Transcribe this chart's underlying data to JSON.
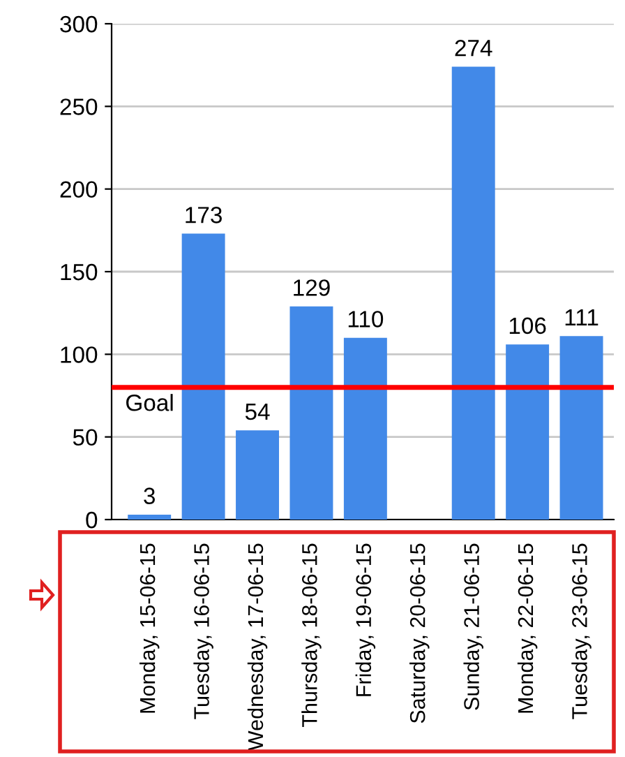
{
  "chart_data": {
    "type": "bar",
    "categories": [
      "Monday, 15-06-15",
      "Tuesday, 16-06-15",
      "Wednesday, 17-06-15",
      "Thursday, 18-06-15",
      "Friday, 19-06-15",
      "Saturday, 20-06-15",
      "Sunday, 21-06-15",
      "Monday, 22-06-15",
      "Tuesday, 23-06-15"
    ],
    "series": [
      {
        "color": "#4289e8",
        "values": [
          3,
          173,
          54,
          129,
          110,
          null,
          274,
          106,
          111
        ]
      }
    ],
    "ylim": [
      0,
      300
    ],
    "yticks": [
      0,
      50,
      100,
      150,
      200,
      250,
      300
    ],
    "grid": "y",
    "data_labels": true,
    "ref_lines": [
      {
        "axis": "y",
        "value": 80,
        "label": "Goal",
        "color": "#ff0000",
        "line_style": "solid"
      }
    ]
  }
}
